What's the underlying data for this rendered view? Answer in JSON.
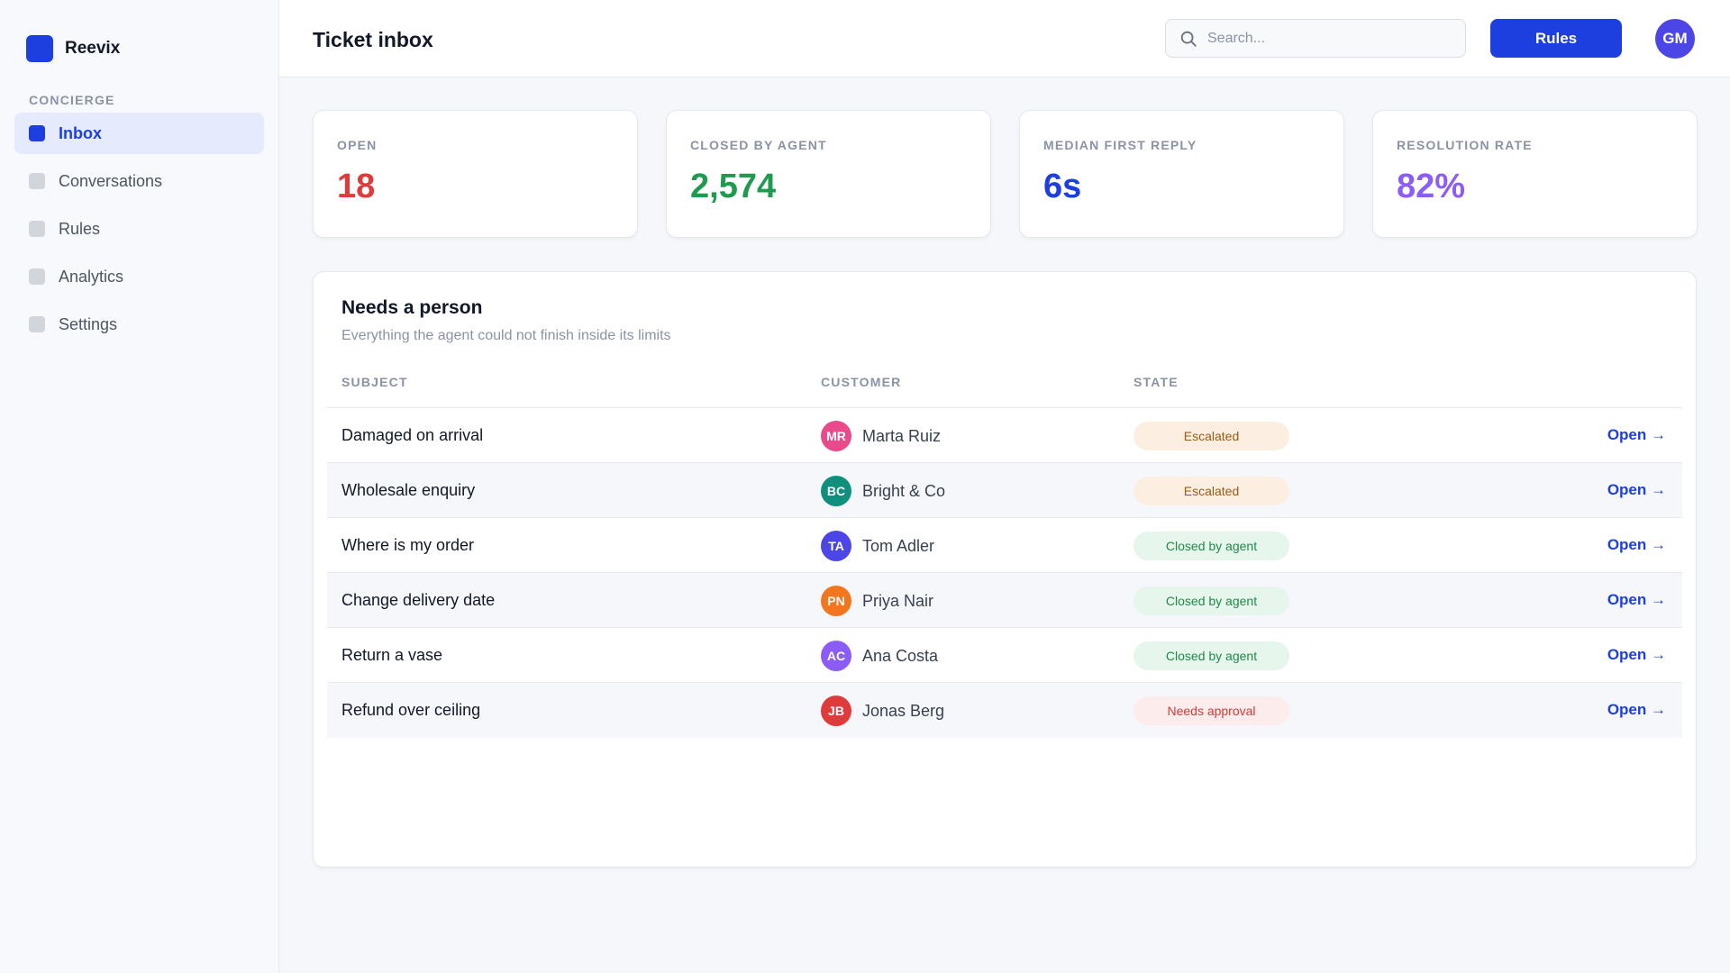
{
  "brand": {
    "name": "Reevix",
    "accent": "#1d3fe0"
  },
  "sidebar": {
    "section_label": "CONCIERGE",
    "items": [
      {
        "label": "Inbox",
        "active": true
      },
      {
        "label": "Conversations",
        "active": false
      },
      {
        "label": "Rules",
        "active": false
      },
      {
        "label": "Analytics",
        "active": false
      },
      {
        "label": "Settings",
        "active": false
      }
    ]
  },
  "header": {
    "title": "Ticket inbox",
    "search_placeholder": "Search...",
    "rules_button": "Rules",
    "user_initials": "GM"
  },
  "stats": [
    {
      "label": "OPEN",
      "value": "18",
      "color": "#e03b3b"
    },
    {
      "label": "CLOSED BY AGENT",
      "value": "2,574",
      "color": "#1f9a4f"
    },
    {
      "label": "MEDIAN FIRST REPLY",
      "value": "6s",
      "color": "#1d3fe0"
    },
    {
      "label": "RESOLUTION RATE",
      "value": "82%",
      "color": "#8b5cf6"
    }
  ],
  "table": {
    "title": "Needs a person",
    "subtitle": "Everything the agent could not finish inside its limits",
    "columns": {
      "subject": "SUBJECT",
      "customer": "CUSTOMER",
      "state": "STATE"
    },
    "open_label": "Open →",
    "rows": [
      {
        "subject": "Damaged on arrival",
        "initials": "MR",
        "customer": "Marta Ruiz",
        "avatar_color": "#e84a8b",
        "state": "Escalated",
        "state_kind": "escalated"
      },
      {
        "subject": "Wholesale enquiry",
        "initials": "BC",
        "customer": "Bright & Co",
        "avatar_color": "#0f8f7c",
        "state": "Escalated",
        "state_kind": "escalated"
      },
      {
        "subject": "Where is my order",
        "initials": "TA",
        "customer": "Tom Adler",
        "avatar_color": "#4b46e5",
        "state": "Closed by agent",
        "state_kind": "closed"
      },
      {
        "subject": "Change delivery date",
        "initials": "PN",
        "customer": "Priya Nair",
        "avatar_color": "#f2761d",
        "state": "Closed by agent",
        "state_kind": "closed"
      },
      {
        "subject": "Return a vase",
        "initials": "AC",
        "customer": "Ana Costa",
        "avatar_color": "#8b5cf6",
        "state": "Closed by agent",
        "state_kind": "closed"
      },
      {
        "subject": "Refund over ceiling",
        "initials": "JB",
        "customer": "Jonas Berg",
        "avatar_color": "#e03b3b",
        "state": "Needs approval",
        "state_kind": "approval"
      }
    ]
  }
}
